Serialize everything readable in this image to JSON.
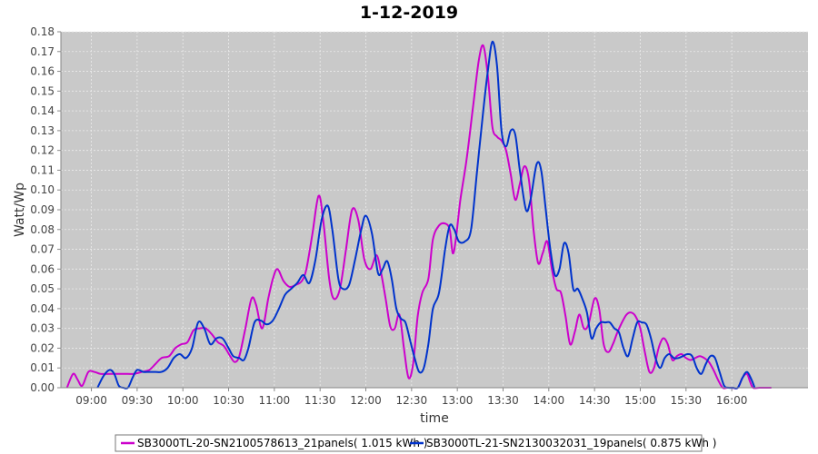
{
  "chart_data": {
    "type": "line",
    "title": "1-12-2019",
    "xlabel": "time",
    "ylabel": "Watt/Wp",
    "ylim": [
      0,
      0.18
    ],
    "xlim": [
      "08:40",
      "16:50"
    ],
    "yticks": [
      "0.00",
      "0.01",
      "0.02",
      "0.03",
      "0.04",
      "0.05",
      "0.06",
      "0.07",
      "0.08",
      "0.09",
      "0.10",
      "0.11",
      "0.12",
      "0.13",
      "0.14",
      "0.15",
      "0.16",
      "0.17",
      "0.18"
    ],
    "xticks": [
      "09:00",
      "09:30",
      "10:00",
      "10:30",
      "11:00",
      "11:30",
      "12:00",
      "12:30",
      "13:00",
      "13:30",
      "14:00",
      "14:30",
      "15:00",
      "15:30",
      "16:00"
    ],
    "grid": true,
    "legend_position": "bottom",
    "series": [
      {
        "name": "SB3000TL-20-SN2100578613_21panels( 1.015 kWh )",
        "color": "#cc00cc",
        "points": [
          [
            "08:44",
            0.0
          ],
          [
            "08:48",
            0.007
          ],
          [
            "08:51",
            0.004
          ],
          [
            "08:54",
            0.001
          ],
          [
            "08:58",
            0.008
          ],
          [
            "09:02",
            0.008
          ],
          [
            "09:06",
            0.007
          ],
          [
            "09:12",
            0.007
          ],
          [
            "09:18",
            0.007
          ],
          [
            "09:24",
            0.007
          ],
          [
            "09:28",
            0.007
          ],
          [
            "09:33",
            0.008
          ],
          [
            "09:38",
            0.009
          ],
          [
            "09:42",
            0.012
          ],
          [
            "09:46",
            0.015
          ],
          [
            "09:51",
            0.016
          ],
          [
            "09:55",
            0.02
          ],
          [
            "09:59",
            0.022
          ],
          [
            "10:03",
            0.023
          ],
          [
            "10:07",
            0.029
          ],
          [
            "10:11",
            0.03
          ],
          [
            "10:15",
            0.03
          ],
          [
            "10:19",
            0.027
          ],
          [
            "10:23",
            0.023
          ],
          [
            "10:27",
            0.021
          ],
          [
            "10:31",
            0.016
          ],
          [
            "10:34",
            0.013
          ],
          [
            "10:37",
            0.016
          ],
          [
            "10:41",
            0.03
          ],
          [
            "10:45",
            0.045
          ],
          [
            "10:48",
            0.042
          ],
          [
            "10:52",
            0.03
          ],
          [
            "10:56",
            0.045
          ],
          [
            "10:59",
            0.055
          ],
          [
            "11:02",
            0.06
          ],
          [
            "11:06",
            0.054
          ],
          [
            "11:10",
            0.051
          ],
          [
            "11:14",
            0.052
          ],
          [
            "11:18",
            0.054
          ],
          [
            "11:21",
            0.06
          ],
          [
            "11:25",
            0.078
          ],
          [
            "11:29",
            0.097
          ],
          [
            "11:32",
            0.085
          ],
          [
            "11:36",
            0.055
          ],
          [
            "11:39",
            0.045
          ],
          [
            "11:43",
            0.05
          ],
          [
            "11:47",
            0.07
          ],
          [
            "11:51",
            0.09
          ],
          [
            "11:55",
            0.085
          ],
          [
            "11:59",
            0.065
          ],
          [
            "12:03",
            0.06
          ],
          [
            "12:07",
            0.067
          ],
          [
            "12:10",
            0.058
          ],
          [
            "12:13",
            0.045
          ],
          [
            "12:16",
            0.031
          ],
          [
            "12:19",
            0.03
          ],
          [
            "12:22",
            0.037
          ],
          [
            "12:25",
            0.02
          ],
          [
            "12:28",
            0.005
          ],
          [
            "12:31",
            0.012
          ],
          [
            "12:34",
            0.036
          ],
          [
            "12:37",
            0.048
          ],
          [
            "12:41",
            0.055
          ],
          [
            "12:44",
            0.075
          ],
          [
            "12:48",
            0.082
          ],
          [
            "12:52",
            0.083
          ],
          [
            "12:55",
            0.08
          ],
          [
            "12:57",
            0.068
          ],
          [
            "12:59",
            0.075
          ],
          [
            "13:02",
            0.095
          ],
          [
            "13:06",
            0.115
          ],
          [
            "13:10",
            0.14
          ],
          [
            "13:14",
            0.165
          ],
          [
            "13:17",
            0.173
          ],
          [
            "13:20",
            0.158
          ],
          [
            "13:23",
            0.132
          ],
          [
            "13:26",
            0.127
          ],
          [
            "13:29",
            0.125
          ],
          [
            "13:32",
            0.12
          ],
          [
            "13:35",
            0.108
          ],
          [
            "13:38",
            0.095
          ],
          [
            "13:41",
            0.103
          ],
          [
            "13:44",
            0.112
          ],
          [
            "13:47",
            0.105
          ],
          [
            "13:50",
            0.08
          ],
          [
            "13:53",
            0.063
          ],
          [
            "13:56",
            0.068
          ],
          [
            "13:59",
            0.074
          ],
          [
            "14:02",
            0.06
          ],
          [
            "14:05",
            0.05
          ],
          [
            "14:08",
            0.048
          ],
          [
            "14:11",
            0.036
          ],
          [
            "14:14",
            0.022
          ],
          [
            "14:17",
            0.028
          ],
          [
            "14:20",
            0.037
          ],
          [
            "14:23",
            0.03
          ],
          [
            "14:26",
            0.032
          ],
          [
            "14:30",
            0.045
          ],
          [
            "14:33",
            0.04
          ],
          [
            "14:36",
            0.022
          ],
          [
            "14:39",
            0.018
          ],
          [
            "14:42",
            0.022
          ],
          [
            "14:45",
            0.028
          ],
          [
            "14:48",
            0.033
          ],
          [
            "14:51",
            0.037
          ],
          [
            "14:54",
            0.038
          ],
          [
            "14:57",
            0.036
          ],
          [
            "15:00",
            0.03
          ],
          [
            "15:03",
            0.018
          ],
          [
            "15:06",
            0.008
          ],
          [
            "15:09",
            0.01
          ],
          [
            "15:12",
            0.02
          ],
          [
            "15:15",
            0.025
          ],
          [
            "15:18",
            0.022
          ],
          [
            "15:21",
            0.014
          ],
          [
            "15:24",
            0.016
          ],
          [
            "15:27",
            0.017
          ],
          [
            "15:30",
            0.015
          ],
          [
            "15:33",
            0.014
          ],
          [
            "15:36",
            0.015
          ],
          [
            "15:39",
            0.016
          ],
          [
            "15:42",
            0.015
          ],
          [
            "15:45",
            0.013
          ],
          [
            "15:48",
            0.009
          ],
          [
            "15:51",
            0.004
          ],
          [
            "15:54",
            0.0
          ],
          [
            "15:57",
            0.0
          ],
          [
            "16:00",
            0.0
          ],
          [
            "16:04",
            0.0
          ],
          [
            "16:07",
            0.005
          ],
          [
            "16:10",
            0.007
          ],
          [
            "16:12",
            0.003
          ],
          [
            "16:14",
            0.0
          ],
          [
            "16:18",
            0.0
          ],
          [
            "16:23",
            0.0
          ],
          [
            "16:26",
            0.0
          ]
        ]
      },
      {
        "name": "SB3000TL-21-SN2130032031_19panels( 0.875 kWh )",
        "color": "#0033cc",
        "points": [
          [
            "09:04",
            0.0
          ],
          [
            "09:08",
            0.006
          ],
          [
            "09:12",
            0.009
          ],
          [
            "09:15",
            0.007
          ],
          [
            "09:18",
            0.001
          ],
          [
            "09:21",
            0.0
          ],
          [
            "09:24",
            0.0
          ],
          [
            "09:27",
            0.005
          ],
          [
            "09:30",
            0.009
          ],
          [
            "09:34",
            0.008
          ],
          [
            "09:38",
            0.008
          ],
          [
            "09:42",
            0.008
          ],
          [
            "09:46",
            0.008
          ],
          [
            "09:50",
            0.01
          ],
          [
            "09:54",
            0.015
          ],
          [
            "09:58",
            0.017
          ],
          [
            "10:02",
            0.015
          ],
          [
            "10:06",
            0.02
          ],
          [
            "10:10",
            0.033
          ],
          [
            "10:14",
            0.03
          ],
          [
            "10:18",
            0.022
          ],
          [
            "10:22",
            0.025
          ],
          [
            "10:26",
            0.025
          ],
          [
            "10:30",
            0.02
          ],
          [
            "10:33",
            0.016
          ],
          [
            "10:37",
            0.015
          ],
          [
            "10:40",
            0.014
          ],
          [
            "10:43",
            0.02
          ],
          [
            "10:47",
            0.033
          ],
          [
            "10:51",
            0.034
          ],
          [
            "10:55",
            0.032
          ],
          [
            "10:59",
            0.034
          ],
          [
            "11:03",
            0.04
          ],
          [
            "11:07",
            0.047
          ],
          [
            "11:11",
            0.05
          ],
          [
            "11:15",
            0.053
          ],
          [
            "11:19",
            0.057
          ],
          [
            "11:23",
            0.053
          ],
          [
            "11:27",
            0.065
          ],
          [
            "11:31",
            0.085
          ],
          [
            "11:35",
            0.092
          ],
          [
            "11:38",
            0.08
          ],
          [
            "11:42",
            0.055
          ],
          [
            "11:45",
            0.05
          ],
          [
            "11:49",
            0.052
          ],
          [
            "11:53",
            0.065
          ],
          [
            "11:57",
            0.08
          ],
          [
            "12:00",
            0.087
          ],
          [
            "12:04",
            0.078
          ],
          [
            "12:08",
            0.058
          ],
          [
            "12:11",
            0.06
          ],
          [
            "12:14",
            0.064
          ],
          [
            "12:17",
            0.055
          ],
          [
            "12:20",
            0.04
          ],
          [
            "12:23",
            0.035
          ],
          [
            "12:26",
            0.033
          ],
          [
            "12:29",
            0.024
          ],
          [
            "12:32",
            0.015
          ],
          [
            "12:35",
            0.008
          ],
          [
            "12:38",
            0.01
          ],
          [
            "12:41",
            0.022
          ],
          [
            "12:44",
            0.04
          ],
          [
            "12:48",
            0.048
          ],
          [
            "12:52",
            0.07
          ],
          [
            "12:55",
            0.082
          ],
          [
            "12:58",
            0.08
          ],
          [
            "13:01",
            0.074
          ],
          [
            "13:05",
            0.074
          ],
          [
            "13:09",
            0.08
          ],
          [
            "13:13",
            0.11
          ],
          [
            "13:17",
            0.14
          ],
          [
            "13:20",
            0.16
          ],
          [
            "13:23",
            0.175
          ],
          [
            "13:26",
            0.163
          ],
          [
            "13:29",
            0.13
          ],
          [
            "13:32",
            0.122
          ],
          [
            "13:35",
            0.13
          ],
          [
            "13:38",
            0.128
          ],
          [
            "13:41",
            0.11
          ],
          [
            "13:45",
            0.09
          ],
          [
            "13:48",
            0.095
          ],
          [
            "13:52",
            0.113
          ],
          [
            "13:55",
            0.11
          ],
          [
            "13:58",
            0.09
          ],
          [
            "14:01",
            0.07
          ],
          [
            "14:04",
            0.057
          ],
          [
            "14:07",
            0.06
          ],
          [
            "14:10",
            0.073
          ],
          [
            "14:13",
            0.068
          ],
          [
            "14:16",
            0.05
          ],
          [
            "14:19",
            0.05
          ],
          [
            "14:22",
            0.045
          ],
          [
            "14:25",
            0.038
          ],
          [
            "14:28",
            0.025
          ],
          [
            "14:31",
            0.03
          ],
          [
            "14:34",
            0.033
          ],
          [
            "14:37",
            0.033
          ],
          [
            "14:40",
            0.033
          ],
          [
            "14:43",
            0.03
          ],
          [
            "14:46",
            0.028
          ],
          [
            "14:49",
            0.02
          ],
          [
            "14:52",
            0.016
          ],
          [
            "14:55",
            0.025
          ],
          [
            "14:58",
            0.033
          ],
          [
            "15:01",
            0.033
          ],
          [
            "15:04",
            0.032
          ],
          [
            "15:07",
            0.025
          ],
          [
            "15:10",
            0.015
          ],
          [
            "15:13",
            0.01
          ],
          [
            "15:16",
            0.015
          ],
          [
            "15:19",
            0.017
          ],
          [
            "15:22",
            0.015
          ],
          [
            "15:25",
            0.015
          ],
          [
            "15:28",
            0.016
          ],
          [
            "15:31",
            0.017
          ],
          [
            "15:34",
            0.016
          ],
          [
            "15:37",
            0.01
          ],
          [
            "15:40",
            0.007
          ],
          [
            "15:43",
            0.012
          ],
          [
            "15:46",
            0.016
          ],
          [
            "15:49",
            0.015
          ],
          [
            "15:52",
            0.008
          ],
          [
            "15:55",
            0.001
          ],
          [
            "15:58",
            0.0
          ],
          [
            "16:01",
            0.0
          ],
          [
            "16:04",
            0.0
          ],
          [
            "16:07",
            0.005
          ],
          [
            "16:10",
            0.008
          ],
          [
            "16:13",
            0.004
          ],
          [
            "16:15",
            0.0
          ]
        ]
      }
    ]
  },
  "colors": {
    "plot_background": "#c9c9c9",
    "gridline": "#e8e8e8",
    "axis_text": "#444444"
  }
}
